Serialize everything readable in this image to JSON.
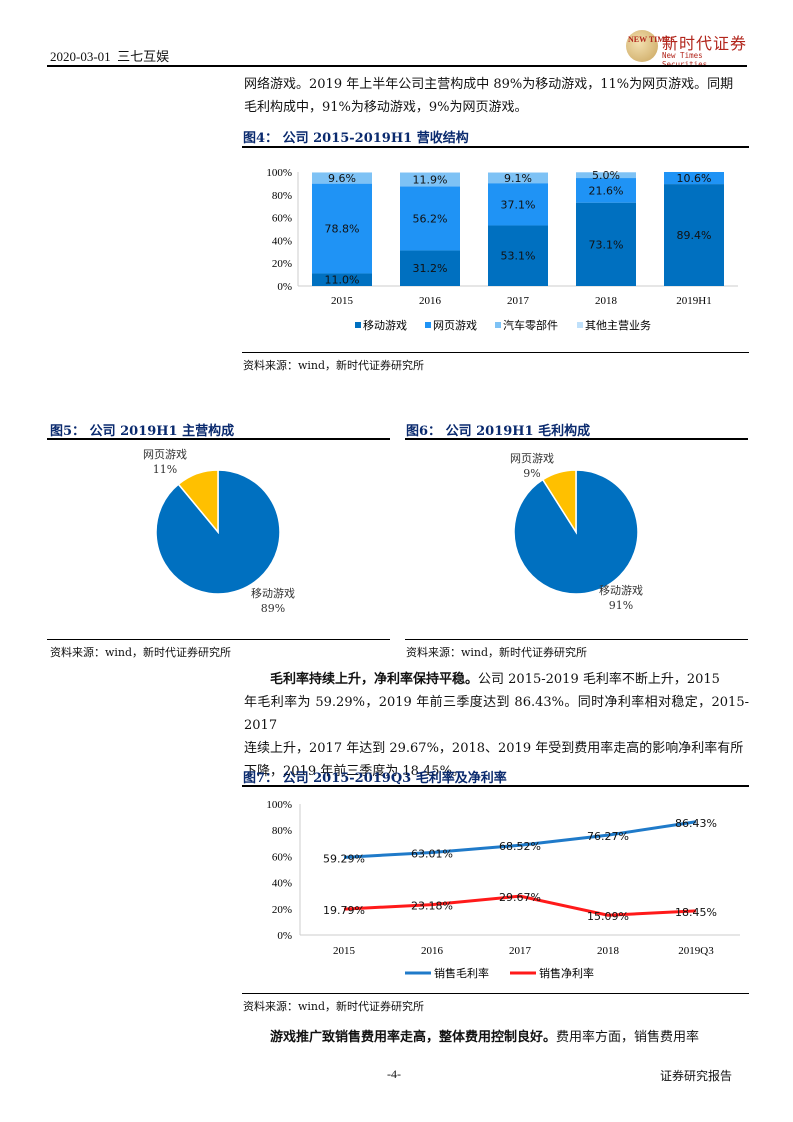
{
  "header": {
    "date": "2020-03-01",
    "company": "三七互娱",
    "logo_cn": "新时代证券",
    "logo_en": "New Times Securities",
    "logo_badge": "NEW TIMES"
  },
  "intro_paragraph": {
    "line1": "网络游戏。2019 年上半年公司主营构成中 89%为移动游戏，11%为网页游戏。同期",
    "line2": "毛利构成中，91%为移动游戏，9%为网页游戏。"
  },
  "fig4": {
    "title": "图4：  公司 2015-2019H1 营收结构",
    "source": "资料来源：wind，新时代证券研究所"
  },
  "fig5": {
    "title": "图5：  公司 2019H1 主营构成",
    "source": "资料来源：wind，新时代证券研究所"
  },
  "fig6": {
    "title": "图6：  公司 2019H1 毛利构成",
    "source": "资料来源：wind，新时代证券研究所"
  },
  "margin_paragraph": {
    "bold": "毛利率持续上升，净利率保持平稳。",
    "line1_rest": "公司 2015-2019 毛利率不断上升，2015",
    "line2": "年毛利率为 59.29%，2019 年前三季度达到 86.43%。同时净利率相对稳定，2015-2017",
    "line3": "连续上升，2017 年达到 29.67%，2018、2019 年受到费用率走高的影响净利率有所",
    "line4": "下降，2019 年前三季度为 18.45%。"
  },
  "fig7": {
    "title": "图7：  公司 2015-2019Q3 毛利率及净利率",
    "source": "资料来源：wind，新时代证券研究所"
  },
  "expense_paragraph": {
    "bold": "游戏推广致销售费用率走高，整体费用控制良好。",
    "rest": "费用率方面，销售费用率"
  },
  "footer": {
    "page": "-4-",
    "label": "证券研究报告"
  },
  "colors": {
    "mobile": "#0070C0",
    "web": "#1F93F5",
    "auto": "#7EC2F5",
    "other": "#BFE0FA",
    "pie_web": "#FFC000",
    "gross": "#1F7AC9",
    "net": "#FF1A1A",
    "title": "#0A2A6E"
  },
  "chart_data": [
    {
      "type": "bar",
      "stacked": true,
      "title": "公司 2015-2019H1 营收结构",
      "categories": [
        "2015",
        "2016",
        "2017",
        "2018",
        "2019H1"
      ],
      "series": [
        {
          "name": "移动游戏",
          "values": [
            11.0,
            31.2,
            53.1,
            73.1,
            89.4
          ],
          "labels": [
            "11.0%",
            "31.2%",
            "53.1%",
            "73.1%",
            "89.4%"
          ]
        },
        {
          "name": "网页游戏",
          "values": [
            78.8,
            56.2,
            37.1,
            21.6,
            10.6
          ],
          "labels": [
            "78.8%",
            "56.2%",
            "37.1%",
            "21.6%",
            "10.6%"
          ]
        },
        {
          "name": "汽车零部件",
          "values": [
            9.6,
            11.9,
            9.1,
            5.0,
            0
          ],
          "labels": [
            "9.6%",
            "11.9%",
            "9.1%",
            "5.0%",
            ""
          ]
        },
        {
          "name": "其他主营业务",
          "values": [
            0.6,
            0.7,
            0.7,
            0.3,
            0
          ],
          "labels": [
            "",
            "",
            "",
            "",
            ""
          ]
        }
      ],
      "yticks": [
        "0%",
        "20%",
        "40%",
        "60%",
        "80%",
        "100%"
      ],
      "ylim": [
        0,
        100
      ],
      "legend_position": "bottom",
      "grid": false
    },
    {
      "type": "pie",
      "title": "公司 2019H1 主营构成",
      "categories": [
        "移动游戏",
        "网页游戏"
      ],
      "values": [
        89,
        11
      ],
      "labels": [
        "89%",
        "11%"
      ]
    },
    {
      "type": "pie",
      "title": "公司 2019H1 毛利构成",
      "categories": [
        "移动游戏",
        "网页游戏"
      ],
      "values": [
        91,
        9
      ],
      "labels": [
        "91%",
        "9%"
      ]
    },
    {
      "type": "line",
      "title": "公司 2015-2019Q3 毛利率及净利率",
      "categories": [
        "2015",
        "2016",
        "2017",
        "2018",
        "2019Q3"
      ],
      "series": [
        {
          "name": "销售毛利率",
          "values": [
            59.29,
            63.01,
            68.52,
            76.27,
            86.43
          ],
          "labels": [
            "59.29%",
            "63.01%",
            "68.52%",
            "76.27%",
            "86.43%"
          ]
        },
        {
          "name": "销售净利率",
          "values": [
            19.79,
            23.18,
            29.67,
            15.09,
            18.45
          ],
          "labels": [
            "19.79%",
            "23.18%",
            "29.67%",
            "15.09%",
            "18.45%"
          ]
        }
      ],
      "yticks": [
        "0%",
        "20%",
        "40%",
        "60%",
        "80%",
        "100%"
      ],
      "ylim": [
        0,
        100
      ],
      "legend_position": "bottom",
      "grid": false
    }
  ]
}
